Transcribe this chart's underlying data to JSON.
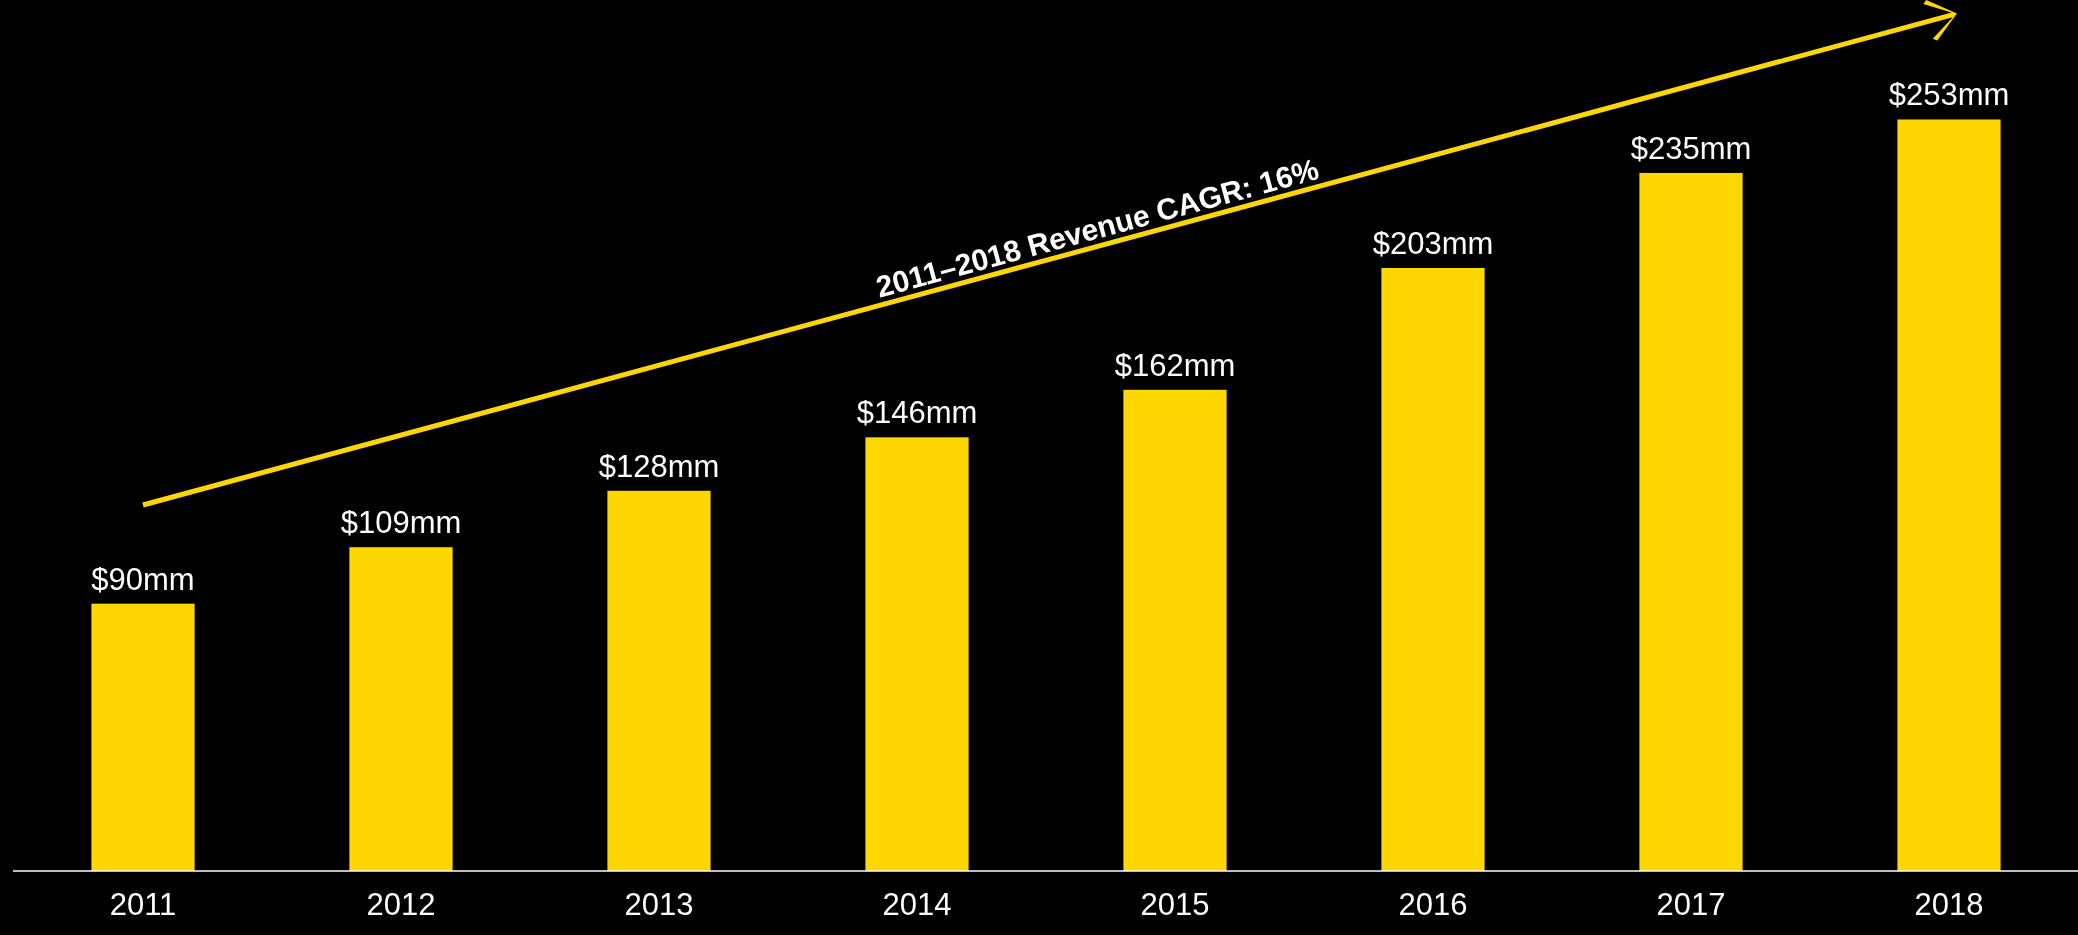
{
  "chart_data": {
    "type": "bar",
    "categories": [
      "2011",
      "2012",
      "2013",
      "2014",
      "2015",
      "2016",
      "2017",
      "2018"
    ],
    "values": [
      90,
      109,
      128,
      146,
      162,
      203,
      235,
      253
    ],
    "value_labels": [
      "$90mm",
      "$109mm",
      "$128mm",
      "$146mm",
      "$162mm",
      "$203mm",
      "$235mm",
      "$253mm"
    ],
    "color": "#ffd700",
    "annotations": [
      "2011–2018 Revenue CAGR: 16%"
    ]
  }
}
